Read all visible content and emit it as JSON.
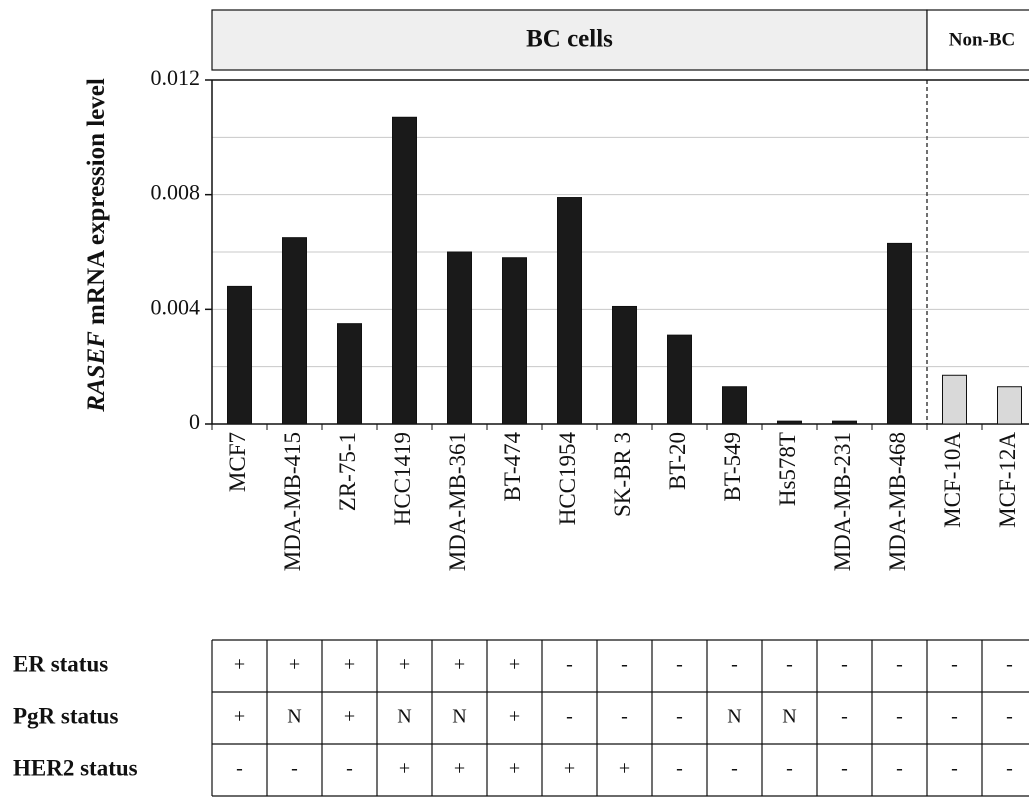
{
  "chart_data": {
    "type": "bar",
    "y_label_gene": "RASEF",
    "y_label": "mRNA expression level",
    "categories": [
      "MCF7",
      "MDA-MB-415",
      "ZR-75-1",
      "HCC1419",
      "MDA-MB-361",
      "BT-474",
      "HCC1954",
      "SK-BR 3",
      "BT-20",
      "BT-549",
      "Hs578T",
      "MDA-MB-231",
      "MDA-MB-468",
      "MCF-10A",
      "MCF-12A"
    ],
    "values": [
      0.0048,
      0.0065,
      0.0035,
      0.0107,
      0.006,
      0.0058,
      0.0079,
      0.0041,
      0.0031,
      0.0013,
      0.0001,
      0.0001,
      0.0063,
      0.0017,
      0.0013
    ],
    "groups": [
      {
        "label": "BC cells",
        "size": 13,
        "color": "#1a1a1a",
        "header_color": "#efefef"
      },
      {
        "label": "Non-BC",
        "size": 2,
        "color": "#d9d9d9",
        "header_color": "#ffffff"
      }
    ],
    "ylim": [
      0,
      0.012
    ],
    "yticks": [
      0,
      0.004,
      0.008,
      0.012
    ],
    "ygrid": [
      0.002,
      0.004,
      0.006,
      0.008,
      0.01
    ],
    "grid": true,
    "status_table": [
      {
        "label": "ER status",
        "values": [
          "+",
          "+",
          "+",
          "+",
          "+",
          "+",
          "-",
          "-",
          "-",
          "-",
          "-",
          "-",
          "-",
          "-",
          "-"
        ]
      },
      {
        "label": "PgR status",
        "values": [
          "+",
          "N",
          "+",
          "N",
          "N",
          "+",
          "-",
          "-",
          "-",
          "N",
          "N",
          "-",
          "-",
          "-",
          "-"
        ]
      },
      {
        "label": "HER2 status",
        "values": [
          "-",
          "-",
          "-",
          "+",
          "+",
          "+",
          "+",
          "+",
          "-",
          "-",
          "-",
          "-",
          "-",
          "-",
          "-"
        ]
      }
    ]
  }
}
